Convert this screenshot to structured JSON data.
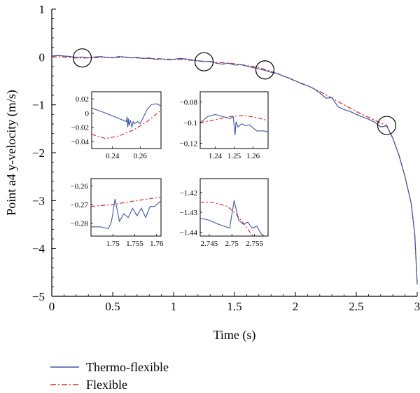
{
  "chart_data": {
    "type": "line",
    "xlabel": "Time (s)",
    "ylabel": "Point a4 y-velocity (m/s)",
    "xlim": [
      0,
      3
    ],
    "ylim": [
      -5,
      1
    ],
    "x_ticks": [
      "0",
      "0.5",
      "1",
      "1.5",
      "2",
      "2.5",
      "3"
    ],
    "y_ticks": [
      "1",
      "0",
      "−1",
      "−2",
      "−3",
      "−4",
      "−5"
    ],
    "grid": false,
    "legend": "bottom-left",
    "colors": {
      "thermo": "#3a56a8",
      "flexible": "#e8262a"
    },
    "series": [
      {
        "name": "Thermo-flexible",
        "style": "solid",
        "x": [
          0,
          0.05,
          0.1,
          0.15,
          0.2,
          0.25,
          0.3,
          0.35,
          0.4,
          0.45,
          0.5,
          0.55,
          0.6,
          0.65,
          0.7,
          0.75,
          0.8,
          0.85,
          0.9,
          0.95,
          1.0,
          1.05,
          1.1,
          1.15,
          1.2,
          1.25,
          1.3,
          1.35,
          1.4,
          1.45,
          1.5,
          1.55,
          1.6,
          1.65,
          1.7,
          1.75,
          1.8,
          1.85,
          1.9,
          1.95,
          2.0,
          2.05,
          2.1,
          2.15,
          2.2,
          2.25,
          2.3,
          2.35,
          2.4,
          2.45,
          2.5,
          2.55,
          2.6,
          2.65,
          2.7,
          2.75,
          2.8,
          2.85,
          2.9,
          2.95,
          2.98,
          3.0
        ],
        "y": [
          0.02,
          0.03,
          0.02,
          0.01,
          -0.01,
          0.0,
          -0.02,
          0.0,
          0.01,
          -0.01,
          -0.02,
          0.01,
          0.0,
          -0.02,
          -0.01,
          -0.03,
          -0.02,
          -0.05,
          -0.04,
          -0.06,
          -0.05,
          -0.03,
          -0.04,
          -0.06,
          -0.08,
          -0.1,
          -0.09,
          -0.13,
          -0.15,
          -0.13,
          -0.17,
          -0.16,
          -0.19,
          -0.22,
          -0.25,
          -0.28,
          -0.32,
          -0.34,
          -0.4,
          -0.44,
          -0.5,
          -0.56,
          -0.6,
          -0.66,
          -0.75,
          -0.86,
          -0.85,
          -1.04,
          -1.1,
          -1.14,
          -1.2,
          -1.25,
          -1.3,
          -1.36,
          -1.46,
          -1.44,
          -1.7,
          -2.05,
          -2.5,
          -3.05,
          -3.7,
          -4.75
        ]
      },
      {
        "name": "Flexible",
        "style": "dash-dot",
        "x": [
          0,
          0.1,
          0.2,
          0.3,
          0.4,
          0.5,
          0.6,
          0.7,
          0.8,
          0.9,
          1.0,
          1.1,
          1.2,
          1.3,
          1.4,
          1.5,
          1.6,
          1.7,
          1.8,
          1.9,
          2.0,
          2.1,
          2.2,
          2.3,
          2.4,
          2.5,
          2.6,
          2.7,
          2.75,
          2.8,
          2.85,
          2.9,
          2.95,
          2.98,
          3.0
        ],
        "y": [
          0.0,
          0.0,
          -0.02,
          -0.02,
          -0.01,
          -0.01,
          -0.01,
          -0.02,
          -0.03,
          -0.04,
          -0.05,
          -0.06,
          -0.08,
          -0.1,
          -0.12,
          -0.14,
          -0.18,
          -0.22,
          -0.3,
          -0.4,
          -0.5,
          -0.6,
          -0.72,
          -0.86,
          -1.0,
          -1.14,
          -1.26,
          -1.38,
          -1.43,
          -1.7,
          -2.05,
          -2.5,
          -3.05,
          -3.7,
          -4.75
        ]
      }
    ],
    "circles": [
      {
        "x": 0.25,
        "y": -0.02
      },
      {
        "x": 1.25,
        "y": -0.1
      },
      {
        "x": 1.75,
        "y": -0.27
      },
      {
        "x": 2.75,
        "y": -1.43
      }
    ],
    "insets": [
      {
        "id": "a",
        "xlim": [
          0.225,
          0.275
        ],
        "ylim": [
          -0.05,
          0.03
        ],
        "x_ticks": [
          0.24,
          0.26
        ],
        "x_tick_labels": [
          "0.24",
          "0.26"
        ],
        "y_ticks": [
          0.02,
          0,
          -0.02,
          -0.04
        ],
        "y_tick_labels": [
          "0.02",
          "0",
          "−0.02",
          "−0.04"
        ],
        "thermo": {
          "x": [
            0.225,
            0.235,
            0.245,
            0.25,
            0.2505,
            0.251,
            0.2515,
            0.252,
            0.253,
            0.254,
            0.255,
            0.256,
            0.258,
            0.26,
            0.265,
            0.268,
            0.272,
            0.275
          ],
          "y": [
            0.007,
            0.0,
            -0.008,
            -0.012,
            -0.005,
            -0.02,
            -0.008,
            -0.018,
            -0.01,
            -0.02,
            -0.012,
            -0.015,
            -0.012,
            -0.015,
            0.005,
            0.012,
            0.013,
            0.01
          ]
        },
        "flex": {
          "x": [
            0.225,
            0.235,
            0.245,
            0.255,
            0.265,
            0.275
          ],
          "y": [
            -0.03,
            -0.036,
            -0.032,
            -0.024,
            -0.012,
            0.004
          ]
        }
      },
      {
        "id": "b",
        "xlim": [
          1.232,
          1.268
        ],
        "ylim": [
          -0.125,
          -0.07
        ],
        "x_ticks": [
          1.24,
          1.25,
          1.26
        ],
        "x_tick_labels": [
          "1.24",
          "1.25",
          "1.26"
        ],
        "y_ticks": [
          -0.08,
          -0.1,
          -0.12
        ],
        "y_tick_labels": [
          "−0.08",
          "−0.1",
          "−0.12"
        ],
        "thermo": {
          "x": [
            1.232,
            1.236,
            1.24,
            1.244,
            1.248,
            1.2495,
            1.2505,
            1.251,
            1.252,
            1.254,
            1.256,
            1.258,
            1.262,
            1.266,
            1.268
          ],
          "y": [
            -0.1,
            -0.094,
            -0.092,
            -0.094,
            -0.096,
            -0.094,
            -0.112,
            -0.099,
            -0.104,
            -0.101,
            -0.103,
            -0.102,
            -0.108,
            -0.108,
            -0.109
          ]
        },
        "flex": {
          "x": [
            1.232,
            1.24,
            1.248,
            1.255,
            1.262,
            1.268
          ],
          "y": [
            -0.1,
            -0.097,
            -0.094,
            -0.093,
            -0.095,
            -0.098
          ]
        }
      },
      {
        "id": "c",
        "xlim": [
          1.745,
          1.761
        ],
        "ylim": [
          -0.287,
          -0.256
        ],
        "x_ticks": [
          1.75,
          1.755,
          1.76
        ],
        "x_tick_labels": [
          "1.75",
          "1.755",
          "1.76"
        ],
        "y_ticks": [
          -0.26,
          -0.27,
          -0.28
        ],
        "y_tick_labels": [
          "−0.26",
          "−0.27",
          "−0.28"
        ],
        "thermo": {
          "x": [
            1.745,
            1.747,
            1.749,
            1.7497,
            1.7505,
            1.7515,
            1.7525,
            1.7535,
            1.7545,
            1.7555,
            1.7565,
            1.7575,
            1.7585,
            1.7595,
            1.761
          ],
          "y": [
            -0.282,
            -0.282,
            -0.283,
            -0.279,
            -0.267,
            -0.279,
            -0.275,
            -0.277,
            -0.272,
            -0.276,
            -0.272,
            -0.277,
            -0.271,
            -0.271,
            -0.268
          ]
        },
        "flex": {
          "x": [
            1.745,
            1.75,
            1.755,
            1.761
          ],
          "y": [
            -0.271,
            -0.27,
            -0.268,
            -0.266
          ]
        }
      },
      {
        "id": "d",
        "xlim": [
          2.743,
          2.758
        ],
        "ylim": [
          -1.442,
          -1.413
        ],
        "x_ticks": [
          2.745,
          2.75,
          2.755
        ],
        "x_tick_labels": [
          "2.745",
          "2.75",
          "2.755"
        ],
        "y_ticks": [
          -1.42,
          -1.43,
          -1.44
        ],
        "y_tick_labels": [
          "−1.42",
          "−1.43",
          "−1.44"
        ],
        "thermo": {
          "x": [
            2.743,
            2.745,
            2.747,
            2.7495,
            2.7505,
            2.7515,
            2.7525,
            2.7535,
            2.7545,
            2.7555,
            2.7565,
            2.758
          ],
          "y": [
            -1.433,
            -1.434,
            -1.436,
            -1.438,
            -1.424,
            -1.434,
            -1.436,
            -1.435,
            -1.438,
            -1.437,
            -1.441,
            -1.443
          ]
        },
        "flex": {
          "x": [
            2.743,
            2.746,
            2.749,
            2.751,
            2.753,
            2.755
          ],
          "y": [
            -1.425,
            -1.425,
            -1.427,
            -1.431,
            -1.437,
            -1.443
          ]
        }
      }
    ]
  }
}
